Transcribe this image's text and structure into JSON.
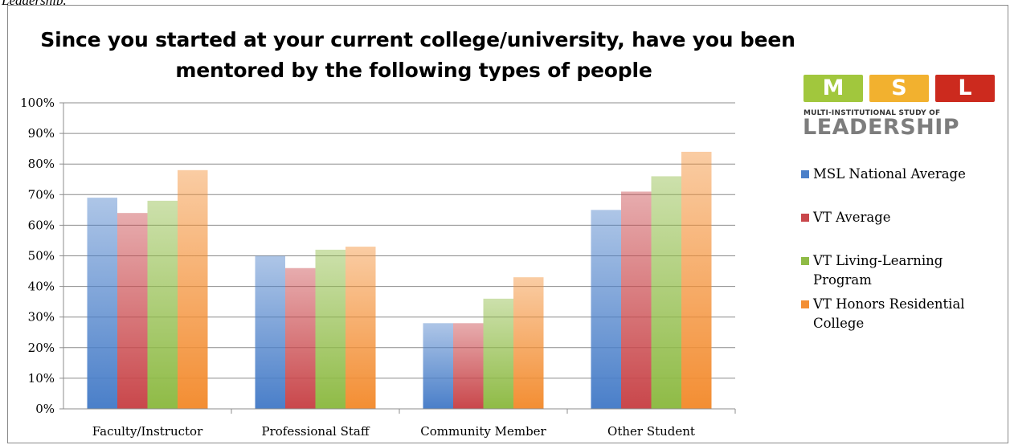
{
  "caption_fragment": "Leadership.",
  "colors": {
    "msl_national": "#4a7fc9",
    "vt_average": "#c9474b",
    "vt_living_learning": "#8fbb46",
    "vt_honors": "#f38e33",
    "logo_m": "#a1c73d",
    "logo_s": "#f2b12f",
    "logo_l": "#cc2a1e"
  },
  "logo": {
    "letters": [
      "M",
      "S",
      "L"
    ],
    "subtitle": "MULTI-INSTITUTIONAL STUDY OF",
    "wordmark": "LEADERSHIP"
  },
  "chart_data": {
    "type": "bar",
    "title": "Since you started at your current college/university, have you been mentored by the following types of people",
    "title_lines": [
      "Since you started at your current college/university, have you been",
      "mentored by the following types of people"
    ],
    "xlabel": "",
    "ylabel": "",
    "ylim": [
      0,
      100
    ],
    "y_ticks": [
      "0%",
      "10%",
      "20%",
      "30%",
      "40%",
      "50%",
      "60%",
      "70%",
      "80%",
      "90%",
      "100%"
    ],
    "categories": [
      "Faculty/Instructor",
      "Professional Staff",
      "Community Member",
      "Other Student"
    ],
    "series": [
      {
        "name": "MSL National Average",
        "values": [
          69,
          50,
          28,
          65
        ],
        "color": "#4a7fc9"
      },
      {
        "name": "VT Average",
        "values": [
          64,
          46,
          28,
          71
        ],
        "color": "#c9474b"
      },
      {
        "name": "VT Living-Learning Program",
        "values": [
          68,
          52,
          36,
          76
        ],
        "color": "#8fbb46"
      },
      {
        "name": "VT Honors Residential College",
        "values": [
          78,
          53,
          43,
          84
        ],
        "color": "#f38e33"
      }
    ],
    "grid": true,
    "legend_position": "right"
  },
  "legend": [
    {
      "lines": [
        "MSL National Average"
      ]
    },
    {
      "lines": [
        "VT Average"
      ]
    },
    {
      "lines": [
        "VT Living-Learning",
        "Program"
      ]
    },
    {
      "lines": [
        "VT Honors Residential",
        "College"
      ]
    }
  ]
}
